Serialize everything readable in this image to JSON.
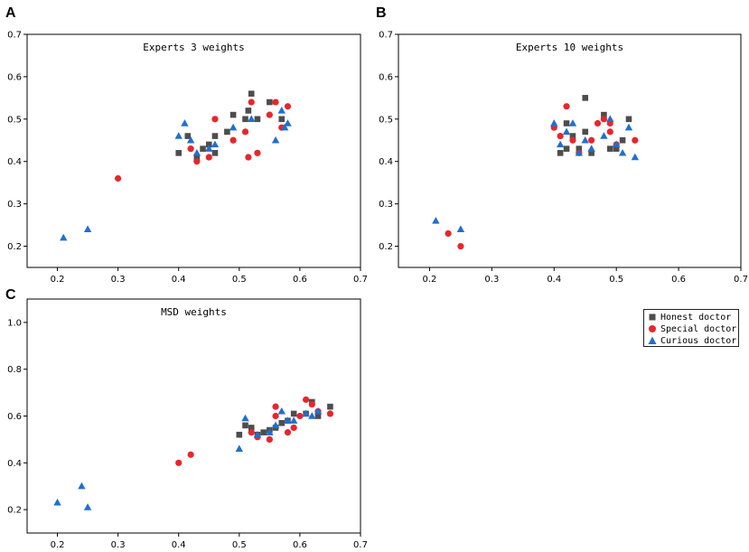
{
  "panel_letters": {
    "a": "A",
    "b": "B",
    "c": "C"
  },
  "legend": {
    "items": [
      {
        "name": "Honest doctor",
        "color": "#4d4d4d",
        "marker": "square-icon"
      },
      {
        "name": "Special doctor",
        "color": "#e8262b",
        "marker": "circle-icon"
      },
      {
        "name": "Curious doctor",
        "color": "#1f6fd1",
        "marker": "triangle-icon"
      }
    ]
  },
  "chart_data": [
    {
      "id": "A",
      "type": "scatter",
      "title": "Experts 3 weights",
      "xlim": [
        0.15,
        0.7
      ],
      "ylim": [
        0.15,
        0.7
      ],
      "xticks": [
        0.2,
        0.3,
        0.4,
        0.5,
        0.6,
        0.7
      ],
      "yticks": [
        0.2,
        0.3,
        0.4,
        0.5,
        0.6,
        0.7
      ],
      "xtick_labels": [
        "0.2",
        "0.3",
        "0.4",
        "0.5",
        "0.6",
        "0.7"
      ],
      "ytick_labels": [
        "0.2",
        "0.3",
        "0.4",
        "0.5",
        "0.6",
        "0.7"
      ],
      "series": [
        {
          "name": "Honest doctor",
          "points": [
            [
              0.4,
              0.42
            ],
            [
              0.415,
              0.46
            ],
            [
              0.43,
              0.41
            ],
            [
              0.44,
              0.43
            ],
            [
              0.45,
              0.44
            ],
            [
              0.46,
              0.42
            ],
            [
              0.46,
              0.46
            ],
            [
              0.48,
              0.47
            ],
            [
              0.49,
              0.51
            ],
            [
              0.51,
              0.5
            ],
            [
              0.515,
              0.52
            ],
            [
              0.52,
              0.56
            ],
            [
              0.53,
              0.5
            ],
            [
              0.55,
              0.54
            ],
            [
              0.57,
              0.5
            ]
          ]
        },
        {
          "name": "Special doctor",
          "points": [
            [
              0.3,
              0.36
            ],
            [
              0.42,
              0.43
            ],
            [
              0.43,
              0.4
            ],
            [
              0.45,
              0.41
            ],
            [
              0.46,
              0.5
            ],
            [
              0.49,
              0.45
            ],
            [
              0.51,
              0.47
            ],
            [
              0.515,
              0.41
            ],
            [
              0.52,
              0.54
            ],
            [
              0.53,
              0.42
            ],
            [
              0.55,
              0.51
            ],
            [
              0.56,
              0.54
            ],
            [
              0.57,
              0.48
            ],
            [
              0.58,
              0.53
            ]
          ]
        },
        {
          "name": "Curious doctor",
          "points": [
            [
              0.21,
              0.22
            ],
            [
              0.25,
              0.24
            ],
            [
              0.4,
              0.46
            ],
            [
              0.41,
              0.49
            ],
            [
              0.42,
              0.45
            ],
            [
              0.43,
              0.42
            ],
            [
              0.45,
              0.43
            ],
            [
              0.46,
              0.44
            ],
            [
              0.49,
              0.48
            ],
            [
              0.52,
              0.5
            ],
            [
              0.56,
              0.45
            ],
            [
              0.57,
              0.52
            ],
            [
              0.575,
              0.48
            ],
            [
              0.58,
              0.49
            ]
          ]
        }
      ]
    },
    {
      "id": "B",
      "type": "scatter",
      "title": "Experts 10 weights",
      "xlim": [
        0.15,
        0.7
      ],
      "ylim": [
        0.15,
        0.7
      ],
      "xticks": [
        0.2,
        0.3,
        0.4,
        0.5,
        0.6,
        0.7
      ],
      "yticks": [
        0.2,
        0.3,
        0.4,
        0.5,
        0.6,
        0.7
      ],
      "xtick_labels": [
        "0.2",
        "0.3",
        "0.4",
        "0.5",
        "0.6",
        "0.7"
      ],
      "ytick_labels": [
        "0.2",
        "0.3",
        "0.4",
        "0.5",
        "0.6",
        "0.7"
      ],
      "series": [
        {
          "name": "Honest doctor",
          "points": [
            [
              0.41,
              0.42
            ],
            [
              0.42,
              0.49
            ],
            [
              0.42,
              0.43
            ],
            [
              0.43,
              0.46
            ],
            [
              0.44,
              0.43
            ],
            [
              0.45,
              0.55
            ],
            [
              0.45,
              0.47
            ],
            [
              0.46,
              0.42
            ],
            [
              0.48,
              0.51
            ],
            [
              0.49,
              0.43
            ],
            [
              0.5,
              0.43
            ],
            [
              0.51,
              0.45
            ],
            [
              0.52,
              0.5
            ]
          ]
        },
        {
          "name": "Special doctor",
          "points": [
            [
              0.23,
              0.23
            ],
            [
              0.25,
              0.2
            ],
            [
              0.4,
              0.48
            ],
            [
              0.41,
              0.46
            ],
            [
              0.42,
              0.53
            ],
            [
              0.43,
              0.45
            ],
            [
              0.44,
              0.42
            ],
            [
              0.46,
              0.45
            ],
            [
              0.47,
              0.49
            ],
            [
              0.48,
              0.5
            ],
            [
              0.49,
              0.47
            ],
            [
              0.49,
              0.49
            ],
            [
              0.5,
              0.44
            ],
            [
              0.53,
              0.45
            ]
          ]
        },
        {
          "name": "Curious doctor",
          "points": [
            [
              0.21,
              0.26
            ],
            [
              0.25,
              0.24
            ],
            [
              0.4,
              0.49
            ],
            [
              0.41,
              0.44
            ],
            [
              0.42,
              0.47
            ],
            [
              0.43,
              0.49
            ],
            [
              0.44,
              0.42
            ],
            [
              0.45,
              0.45
            ],
            [
              0.46,
              0.43
            ],
            [
              0.48,
              0.46
            ],
            [
              0.49,
              0.5
            ],
            [
              0.5,
              0.44
            ],
            [
              0.51,
              0.42
            ],
            [
              0.52,
              0.48
            ],
            [
              0.53,
              0.41
            ]
          ]
        }
      ]
    },
    {
      "id": "C",
      "type": "scatter",
      "title": "MSD weights",
      "xlim": [
        0.15,
        0.7
      ],
      "ylim": [
        0.1,
        1.1
      ],
      "xticks": [
        0.2,
        0.3,
        0.4,
        0.5,
        0.6,
        0.7
      ],
      "yticks": [
        0.2,
        0.4,
        0.6,
        0.8,
        1.0
      ],
      "xtick_labels": [
        "0.2",
        "0.3",
        "0.4",
        "0.5",
        "0.6",
        "0.7"
      ],
      "ytick_labels": [
        "0.2",
        "0.4",
        "0.6",
        "0.8",
        "1.0"
      ],
      "series": [
        {
          "name": "Honest doctor",
          "points": [
            [
              0.5,
              0.52
            ],
            [
              0.51,
              0.56
            ],
            [
              0.52,
              0.55
            ],
            [
              0.53,
              0.52
            ],
            [
              0.54,
              0.53
            ],
            [
              0.55,
              0.54
            ],
            [
              0.56,
              0.55
            ],
            [
              0.57,
              0.57
            ],
            [
              0.58,
              0.58
            ],
            [
              0.59,
              0.61
            ],
            [
              0.61,
              0.61
            ],
            [
              0.62,
              0.66
            ],
            [
              0.63,
              0.6
            ],
            [
              0.65,
              0.64
            ]
          ]
        },
        {
          "name": "Special doctor",
          "points": [
            [
              0.4,
              0.4
            ],
            [
              0.42,
              0.435
            ],
            [
              0.52,
              0.53
            ],
            [
              0.53,
              0.51
            ],
            [
              0.55,
              0.5
            ],
            [
              0.56,
              0.6
            ],
            [
              0.56,
              0.64
            ],
            [
              0.58,
              0.53
            ],
            [
              0.59,
              0.55
            ],
            [
              0.6,
              0.6
            ],
            [
              0.61,
              0.67
            ],
            [
              0.62,
              0.65
            ],
            [
              0.63,
              0.62
            ],
            [
              0.65,
              0.61
            ]
          ]
        },
        {
          "name": "Curious doctor",
          "points": [
            [
              0.2,
              0.23
            ],
            [
              0.24,
              0.3
            ],
            [
              0.25,
              0.21
            ],
            [
              0.5,
              0.46
            ],
            [
              0.51,
              0.59
            ],
            [
              0.53,
              0.52
            ],
            [
              0.55,
              0.53
            ],
            [
              0.56,
              0.56
            ],
            [
              0.57,
              0.62
            ],
            [
              0.58,
              0.58
            ],
            [
              0.59,
              0.58
            ],
            [
              0.61,
              0.61
            ],
            [
              0.62,
              0.6
            ],
            [
              0.63,
              0.62
            ]
          ]
        }
      ]
    }
  ]
}
